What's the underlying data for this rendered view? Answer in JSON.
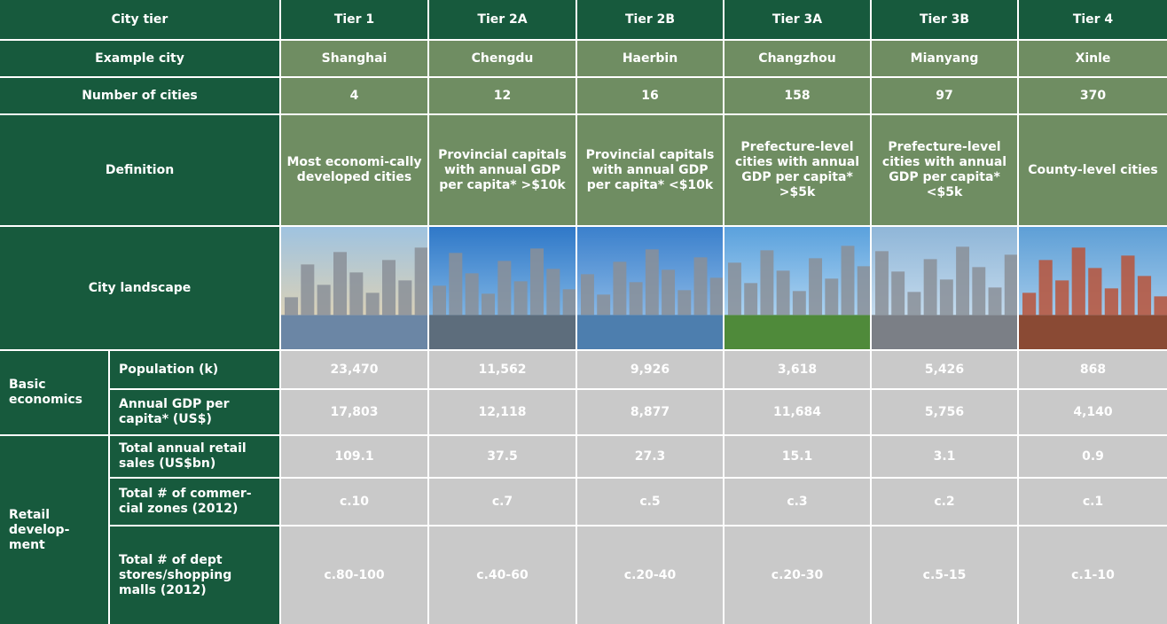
{
  "table": {
    "header": [
      "City tier",
      "Tier 1",
      "Tier 2A",
      "Tier 2B",
      "Tier 3A",
      "Tier 3B",
      "Tier 4"
    ],
    "rows": [
      {
        "label": "Example city",
        "cells": [
          "Shanghai",
          "Chengdu",
          "Haerbin",
          "Changzhou",
          "Mianyang",
          "Xinle"
        ]
      },
      {
        "label": "Number of cities",
        "cells": [
          "4",
          "12",
          "16",
          "158",
          "97",
          "370"
        ]
      },
      {
        "label": "Definition",
        "cells": [
          "Most economi-cally developed cities",
          "Provincial capitals with annual GDP per capita* >$10k",
          "Provincial capitals with annual GDP per capita* <$10k",
          "Prefecture-level cities with annual GDP per capita* >$5k",
          "Prefecture-level cities with annual GDP per capita* <$5k",
          "County-level cities"
        ]
      }
    ],
    "landscape_label": "City landscape",
    "groups": [
      {
        "label": "Basic economics",
        "rows": [
          {
            "label": "Population (k)",
            "cells": [
              "23,470",
              "11,562",
              "9,926",
              "3,618",
              "5,426",
              "868"
            ]
          },
          {
            "label": "Annual GDP per capita* (US$)",
            "cells": [
              "17,803",
              "12,118",
              "8,877",
              "11,684",
              "5,756",
              "4,140"
            ]
          }
        ]
      },
      {
        "label": "Retail develop-ment",
        "rows": [
          {
            "label": "Total annual retail sales (US$bn)",
            "cells": [
              "109.1",
              "37.5",
              "27.3",
              "15.1",
              "3.1",
              "0.9"
            ]
          },
          {
            "label": "Total # of commer-cial zones (2012)",
            "cells": [
              "c.10",
              "c.7",
              "c.5",
              "c.3",
              "c.2",
              "c.1"
            ]
          },
          {
            "label": "Total # of dept stores/shopping malls (2012)",
            "cells": [
              "c.80-100",
              "c.40-60",
              "c.20-40",
              "c.20-30",
              "c.5-15",
              "c.1-10"
            ]
          }
        ]
      }
    ]
  }
}
